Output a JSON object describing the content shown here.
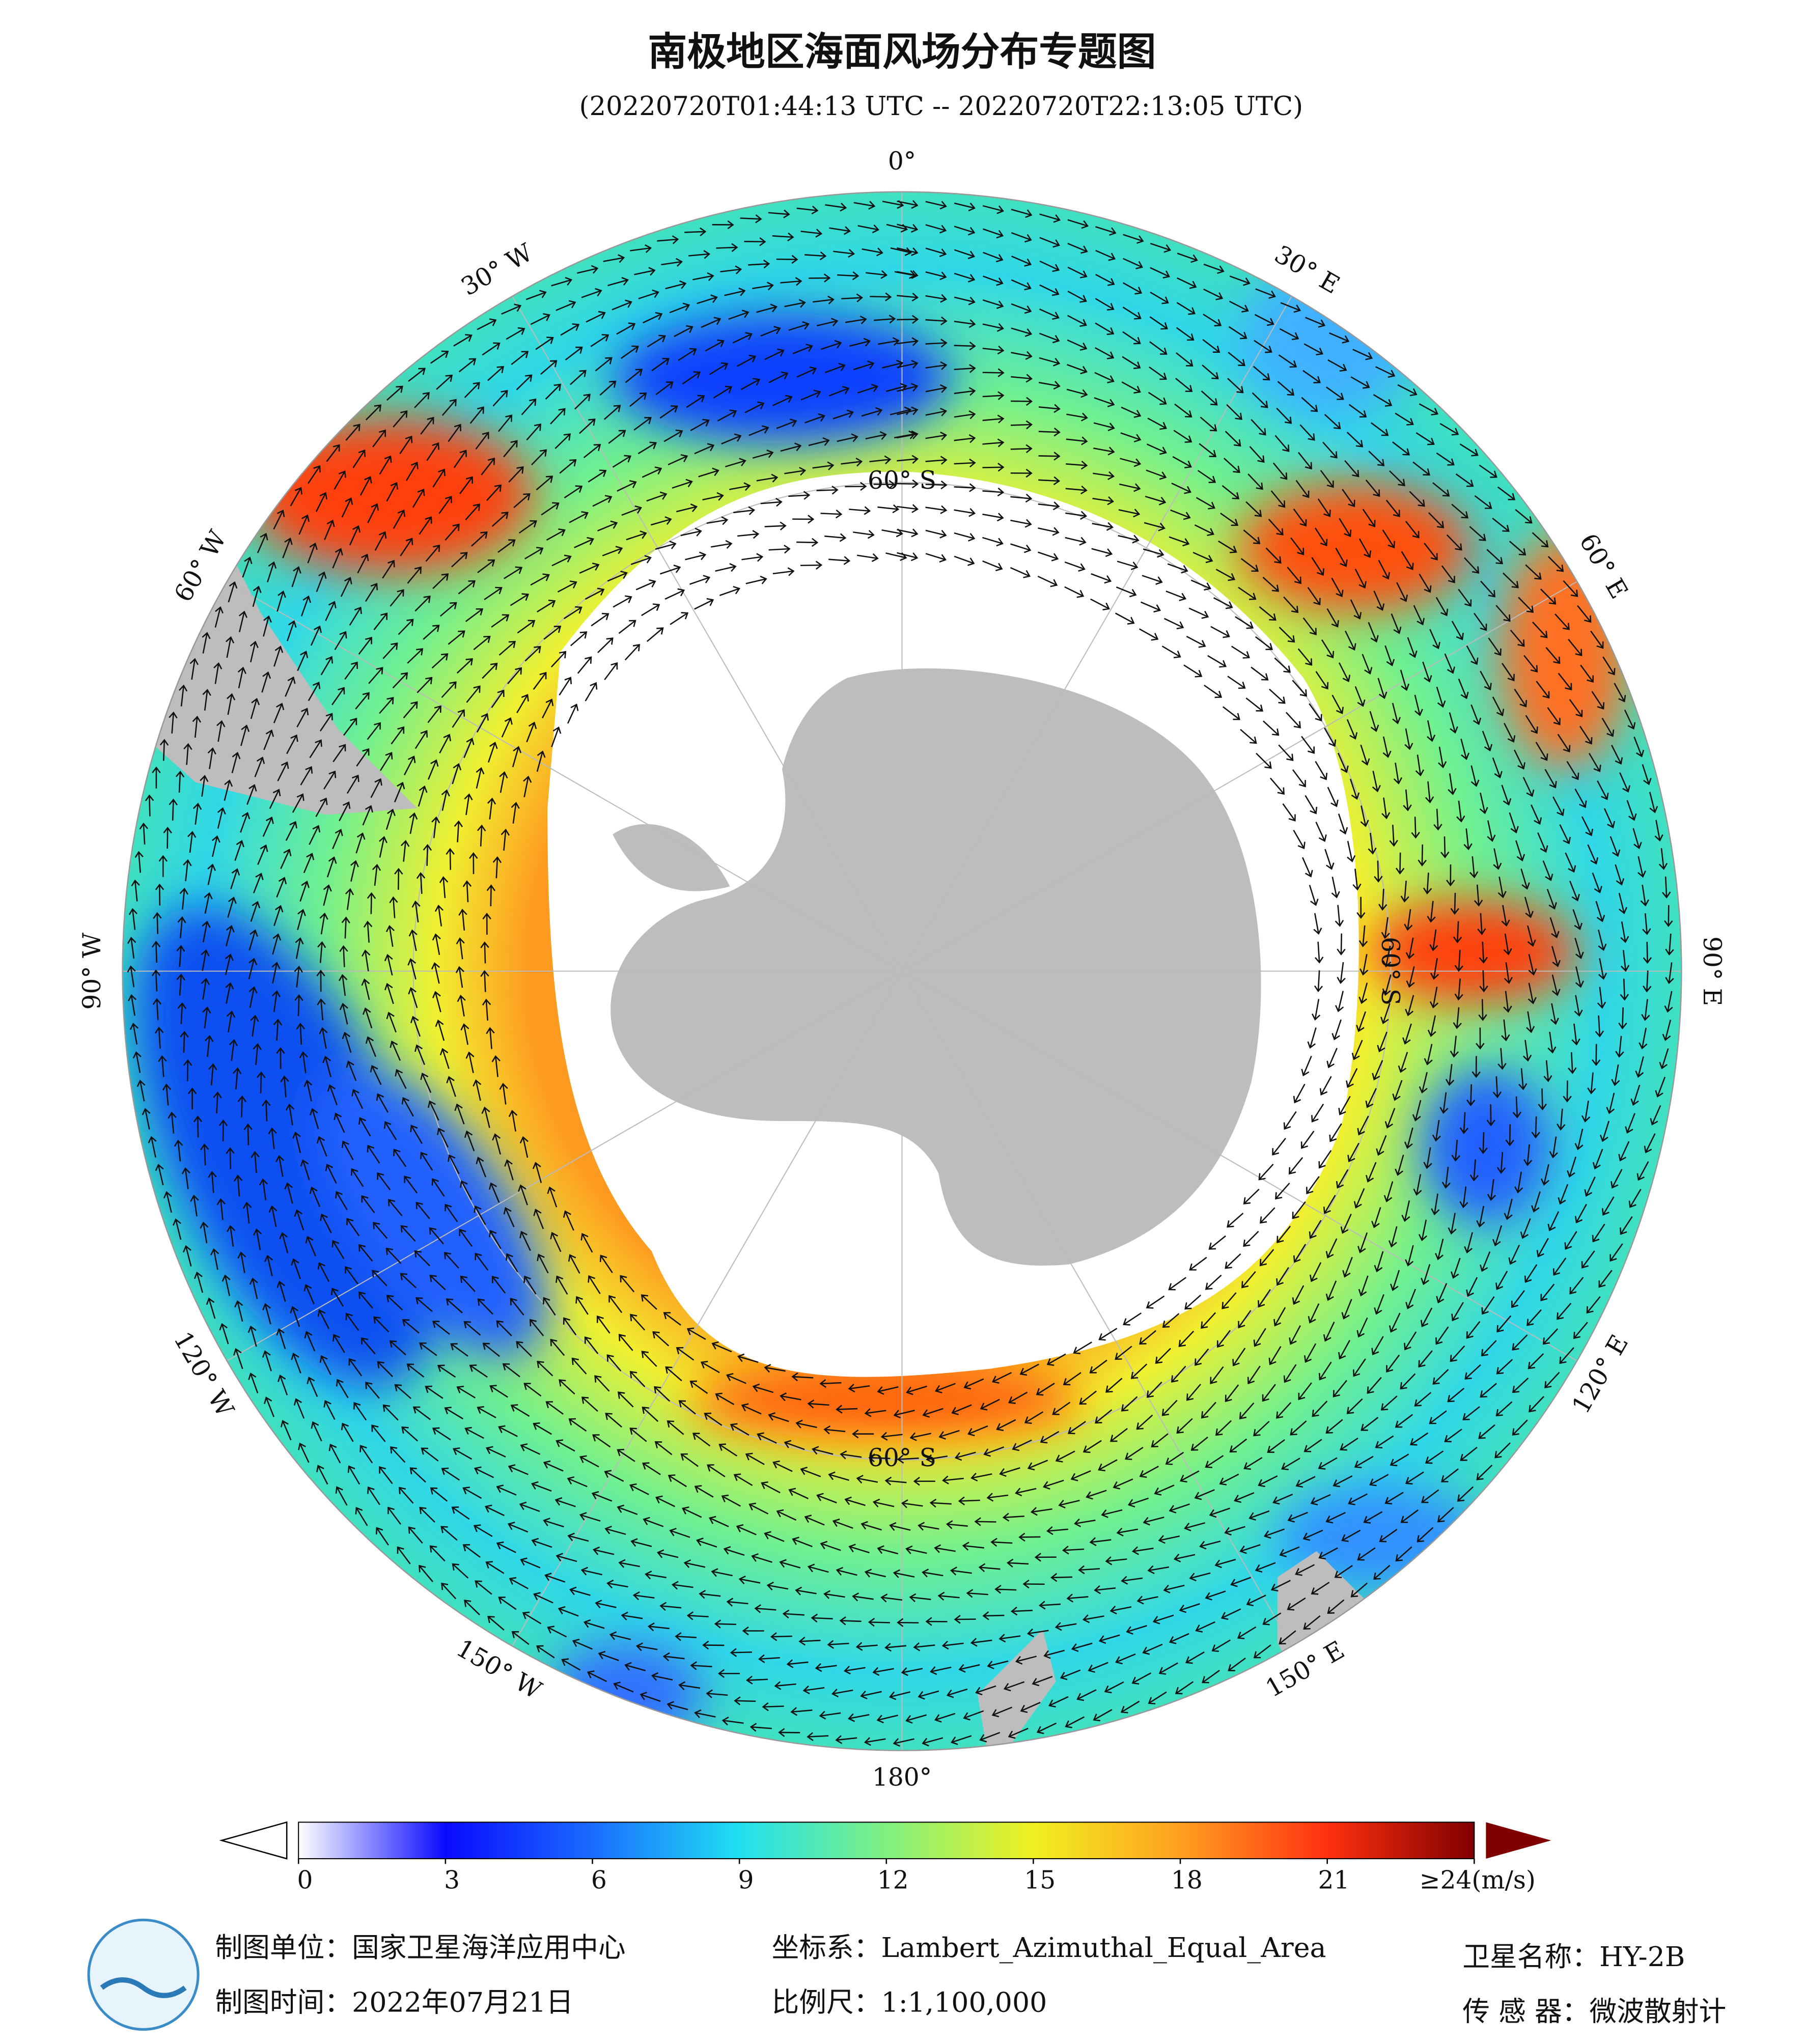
{
  "header": {
    "title": "南极地区海面风场分布专题图",
    "subtitle": "(20220720T01:44:13 UTC -- 20220720T22:13:05 UTC)"
  },
  "map": {
    "lon_labels": [
      {
        "lon": 0,
        "label": "0°"
      },
      {
        "lon": 30,
        "label": "30° E"
      },
      {
        "lon": 60,
        "label": "60° E"
      },
      {
        "lon": 90,
        "label": "90° E"
      },
      {
        "lon": 120,
        "label": "120° E"
      },
      {
        "lon": 150,
        "label": "150° E"
      },
      {
        "lon": 180,
        "label": "180°"
      },
      {
        "lon": -150,
        "label": "150° W"
      },
      {
        "lon": -120,
        "label": "120° W"
      },
      {
        "lon": -90,
        "label": "90° W"
      },
      {
        "lon": -60,
        "label": "60° W"
      },
      {
        "lon": -30,
        "label": "30° W"
      }
    ],
    "lat_labels": [
      "60° S",
      "60° S",
      "60° S"
    ]
  },
  "colorbar": {
    "clim": [
      0,
      24
    ],
    "ticks": [
      0,
      3,
      6,
      9,
      12,
      15,
      18,
      21,
      {
        "value": 24,
        "label": "≥24(m/s)"
      }
    ],
    "colors": [
      [
        0,
        "#ffffff"
      ],
      [
        3,
        "#0a0aff"
      ],
      [
        6,
        "#1a6cff"
      ],
      [
        9,
        "#20e0f0"
      ],
      [
        12,
        "#80f080"
      ],
      [
        15,
        "#f0f020"
      ],
      [
        18,
        "#ffa020"
      ],
      [
        21,
        "#ff3010"
      ],
      [
        24,
        "#800000"
      ]
    ]
  },
  "footer": {
    "unit": "制图单位：国家卫星海洋应用中心",
    "date": "制图时间：2022年07月21日",
    "crs": "坐标系：Lambert_Azimuthal_Equal_Area",
    "scale": "比例尺：1:1,100,000",
    "satellite": "卫星名称：HY-2B",
    "sensor": "传 感 器：微波散射计"
  }
}
